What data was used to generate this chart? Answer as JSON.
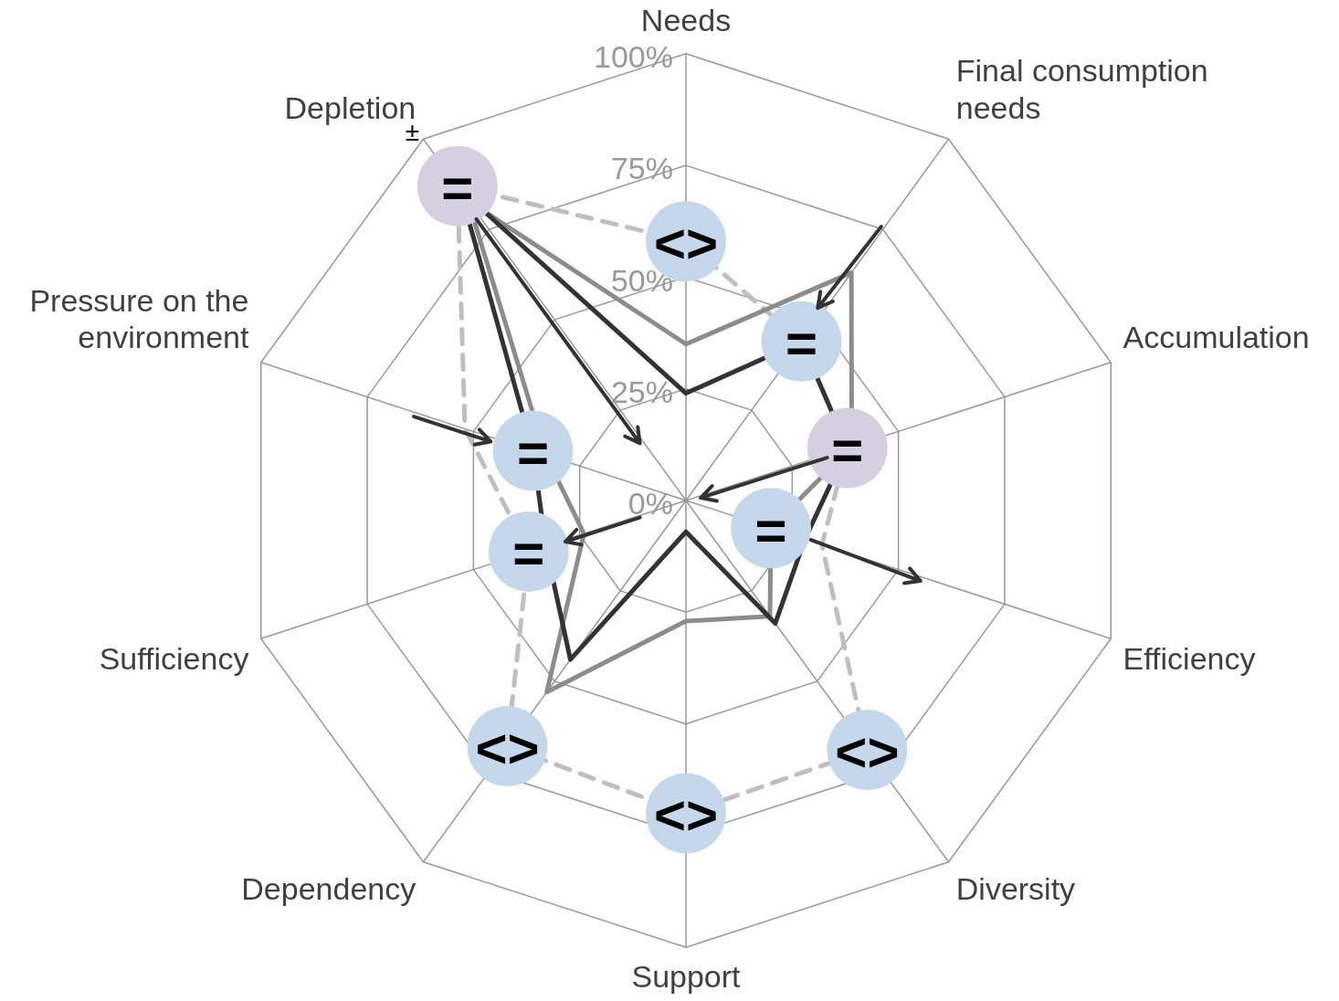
{
  "chart_data": {
    "type": "radar",
    "categories": [
      "Needs",
      "Final consumption needs",
      "Accumulation",
      "Efficiency",
      "Diversity",
      "Support",
      "Dependency",
      "Sufficiency",
      "Pressure on the environment",
      "Depletion"
    ],
    "ylim": [
      0,
      100
    ],
    "yticks": [
      {
        "value": 0,
        "label": "0%"
      },
      {
        "value": 25,
        "label": "25%"
      },
      {
        "value": 50,
        "label": "50%"
      },
      {
        "value": 75,
        "label": "75%"
      },
      {
        "value": 100,
        "label": "100%"
      }
    ],
    "grid": true,
    "series": [
      {
        "color": "#333333",
        "line_style": "solid",
        "values": [
          24,
          44,
          38,
          28,
          34,
          7,
          44,
          33,
          36,
          86
        ]
      },
      {
        "color": "#8c8c8c",
        "line_style": "solid",
        "values": [
          35,
          63,
          39,
          20,
          32,
          27,
          53,
          24,
          33,
          83
        ]
      },
      {
        "color": "#bfbfbf",
        "line_style": "dashed",
        "values": [
          58,
          44,
          38,
          32,
          69,
          70,
          68,
          37,
          52,
          87
        ]
      }
    ],
    "annotations": [
      "<>",
      "=",
      "=",
      "=",
      "<>",
      "<>",
      "<>",
      "=",
      "=",
      "=",
      "±"
    ]
  }
}
